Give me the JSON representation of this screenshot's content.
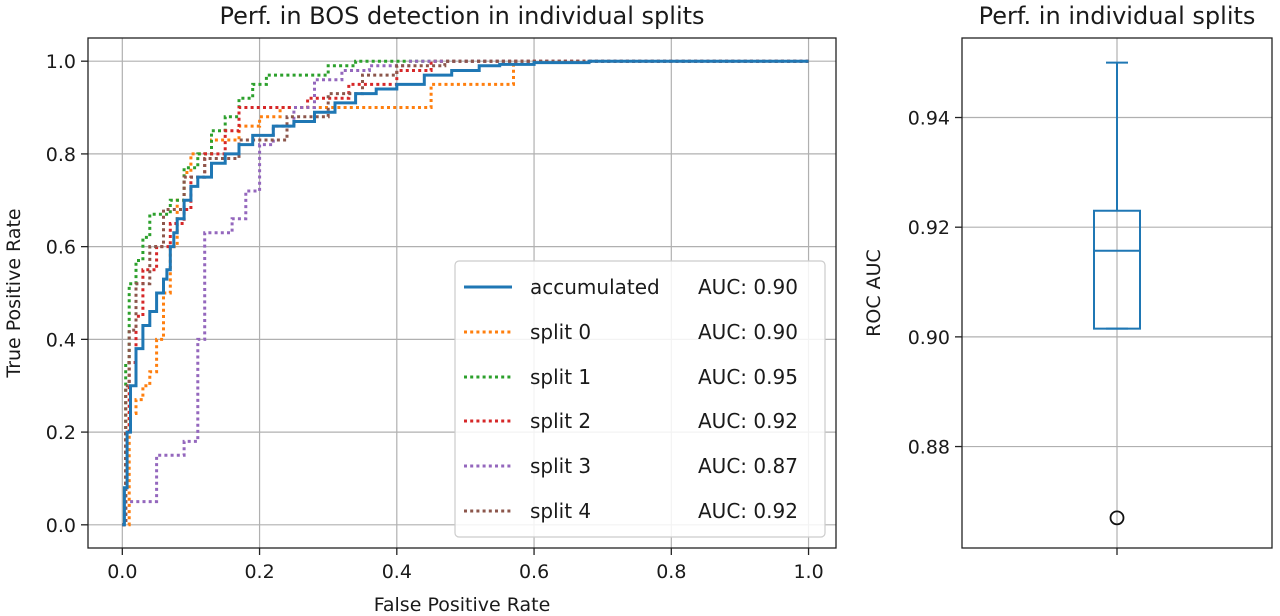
{
  "chart_data": [
    {
      "type": "line",
      "title": "Perf. in BOS detection in individual splits",
      "xlabel": "False Positive Rate",
      "ylabel": "True Positive Rate",
      "xlim": [
        -0.05,
        1.04
      ],
      "ylim": [
        -0.05,
        1.05
      ],
      "xticks": [
        "0.0",
        "0.2",
        "0.4",
        "0.6",
        "0.8",
        "1.0"
      ],
      "yticks": [
        "0.0",
        "0.2",
        "0.4",
        "0.6",
        "0.8",
        "1.0"
      ],
      "grid": true,
      "legend_position": "lower-right",
      "series": [
        {
          "name": "accumulated",
          "auc_label": "AUC: 0.90",
          "color": "#1f77b4",
          "style": "solid",
          "x": [
            0,
            0.003,
            0.003,
            0.007,
            0.007,
            0.012,
            0.012,
            0.02,
            0.02,
            0.03,
            0.03,
            0.04,
            0.04,
            0.05,
            0.05,
            0.06,
            0.06,
            0.065,
            0.065,
            0.07,
            0.07,
            0.075,
            0.075,
            0.08,
            0.08,
            0.09,
            0.09,
            0.1,
            0.1,
            0.11,
            0.11,
            0.13,
            0.13,
            0.15,
            0.15,
            0.17,
            0.17,
            0.19,
            0.19,
            0.22,
            0.22,
            0.25,
            0.25,
            0.28,
            0.28,
            0.31,
            0.31,
            0.34,
            0.34,
            0.37,
            0.37,
            0.4,
            0.4,
            0.44,
            0.44,
            0.48,
            0.48,
            0.52,
            0.52,
            0.55,
            0.55,
            0.6,
            0.6,
            0.68,
            0.68,
            1.0
          ],
          "y": [
            0,
            0,
            0.08,
            0.08,
            0.2,
            0.2,
            0.3,
            0.3,
            0.38,
            0.38,
            0.43,
            0.43,
            0.46,
            0.46,
            0.5,
            0.5,
            0.53,
            0.53,
            0.55,
            0.55,
            0.6,
            0.6,
            0.63,
            0.63,
            0.66,
            0.66,
            0.7,
            0.7,
            0.73,
            0.73,
            0.75,
            0.75,
            0.78,
            0.78,
            0.8,
            0.8,
            0.82,
            0.82,
            0.84,
            0.84,
            0.86,
            0.86,
            0.87,
            0.87,
            0.89,
            0.89,
            0.91,
            0.91,
            0.93,
            0.93,
            0.94,
            0.94,
            0.95,
            0.95,
            0.97,
            0.97,
            0.98,
            0.98,
            0.99,
            0.99,
            0.993,
            0.993,
            0.997,
            0.997,
            1.0,
            1.0
          ]
        },
        {
          "name": "split 0",
          "auc_label": "AUC: 0.90",
          "color": "#ff7f0e",
          "style": "dotted",
          "x": [
            0,
            0.01,
            0.01,
            0.02,
            0.02,
            0.03,
            0.03,
            0.04,
            0.04,
            0.05,
            0.05,
            0.06,
            0.06,
            0.07,
            0.07,
            0.08,
            0.08,
            0.09,
            0.09,
            0.1,
            0.1,
            0.13,
            0.13,
            0.17,
            0.17,
            0.2,
            0.2,
            0.23,
            0.23,
            0.34,
            0.34,
            0.45,
            0.45,
            0.56,
            0.56,
            0.57,
            0.57,
            1.0
          ],
          "y": [
            0,
            0,
            0.24,
            0.24,
            0.27,
            0.27,
            0.3,
            0.3,
            0.33,
            0.33,
            0.4,
            0.4,
            0.5,
            0.5,
            0.6,
            0.6,
            0.7,
            0.7,
            0.76,
            0.76,
            0.8,
            0.8,
            0.83,
            0.83,
            0.86,
            0.86,
            0.88,
            0.88,
            0.9,
            0.9,
            0.9,
            0.9,
            0.95,
            0.95,
            0.95,
            0.95,
            1.0,
            1.0
          ]
        },
        {
          "name": "split 1",
          "auc_label": "AUC: 0.95",
          "color": "#2ca02c",
          "style": "dotted",
          "x": [
            0,
            0.005,
            0.005,
            0.01,
            0.01,
            0.02,
            0.02,
            0.03,
            0.03,
            0.04,
            0.04,
            0.07,
            0.07,
            0.09,
            0.09,
            0.11,
            0.11,
            0.13,
            0.13,
            0.15,
            0.15,
            0.17,
            0.17,
            0.19,
            0.19,
            0.21,
            0.21,
            0.3,
            0.3,
            0.34,
            0.34,
            1.0
          ],
          "y": [
            0,
            0,
            0.35,
            0.35,
            0.52,
            0.52,
            0.57,
            0.57,
            0.62,
            0.62,
            0.67,
            0.67,
            0.7,
            0.7,
            0.77,
            0.77,
            0.8,
            0.8,
            0.85,
            0.85,
            0.88,
            0.88,
            0.92,
            0.92,
            0.95,
            0.95,
            0.97,
            0.97,
            0.99,
            0.99,
            1.0,
            1.0
          ]
        },
        {
          "name": "split 2",
          "auc_label": "AUC: 0.92",
          "color": "#d62728",
          "style": "dotted",
          "x": [
            0,
            0.005,
            0.005,
            0.01,
            0.01,
            0.02,
            0.02,
            0.03,
            0.03,
            0.05,
            0.05,
            0.07,
            0.07,
            0.09,
            0.09,
            0.1,
            0.1,
            0.12,
            0.12,
            0.15,
            0.15,
            0.17,
            0.17,
            0.27,
            0.27,
            0.33,
            0.33,
            0.4,
            0.4,
            0.45,
            0.45,
            1.0
          ],
          "y": [
            0,
            0,
            0.2,
            0.2,
            0.35,
            0.35,
            0.45,
            0.45,
            0.55,
            0.55,
            0.6,
            0.6,
            0.65,
            0.65,
            0.68,
            0.68,
            0.75,
            0.75,
            0.8,
            0.8,
            0.85,
            0.85,
            0.9,
            0.9,
            0.92,
            0.92,
            0.95,
            0.95,
            0.98,
            0.98,
            1.0,
            1.0
          ]
        },
        {
          "name": "split 3",
          "auc_label": "AUC: 0.87",
          "color": "#9467bd",
          "style": "dotted",
          "x": [
            0,
            0.005,
            0.005,
            0.05,
            0.05,
            0.09,
            0.09,
            0.11,
            0.11,
            0.12,
            0.12,
            0.16,
            0.16,
            0.18,
            0.18,
            0.2,
            0.2,
            0.22,
            0.22,
            0.25,
            0.25,
            0.28,
            0.28,
            0.32,
            0.32,
            0.36,
            0.36,
            0.42,
            0.42,
            1.0
          ],
          "y": [
            0,
            0,
            0.05,
            0.05,
            0.15,
            0.15,
            0.18,
            0.18,
            0.4,
            0.4,
            0.63,
            0.63,
            0.66,
            0.66,
            0.72,
            0.72,
            0.82,
            0.82,
            0.86,
            0.86,
            0.9,
            0.9,
            0.96,
            0.96,
            0.98,
            0.98,
            0.99,
            0.99,
            1.0,
            1.0
          ]
        },
        {
          "name": "split 4",
          "auc_label": "AUC: 0.92",
          "color": "#8c564b",
          "style": "dotted",
          "x": [
            0,
            0.005,
            0.005,
            0.01,
            0.01,
            0.02,
            0.02,
            0.04,
            0.04,
            0.06,
            0.06,
            0.09,
            0.09,
            0.12,
            0.12,
            0.17,
            0.17,
            0.24,
            0.24,
            0.3,
            0.3,
            0.35,
            0.35,
            0.4,
            0.4,
            0.47,
            0.47,
            1.0
          ],
          "y": [
            0,
            0,
            0.3,
            0.3,
            0.42,
            0.42,
            0.52,
            0.52,
            0.6,
            0.6,
            0.68,
            0.68,
            0.75,
            0.75,
            0.79,
            0.79,
            0.83,
            0.83,
            0.88,
            0.88,
            0.93,
            0.93,
            0.97,
            0.97,
            0.99,
            0.99,
            1.0,
            1.0
          ]
        }
      ]
    },
    {
      "type": "box",
      "title": "Perf. in individual splits",
      "xlabel": "",
      "ylabel": "ROC AUC",
      "ylim": [
        0.8615,
        0.9545
      ],
      "yticks": [
        0.88,
        0.9,
        0.92,
        0.94
      ],
      "ytick_labels": [
        "0.88",
        "0.90",
        "0.92",
        "0.94"
      ],
      "grid": true,
      "color": "#1f77b4",
      "box": {
        "whisker_low": 0.9015,
        "q1": 0.9015,
        "median": 0.9157,
        "q3": 0.923,
        "whisker_high": 0.95,
        "outliers": [
          0.867
        ]
      }
    }
  ]
}
